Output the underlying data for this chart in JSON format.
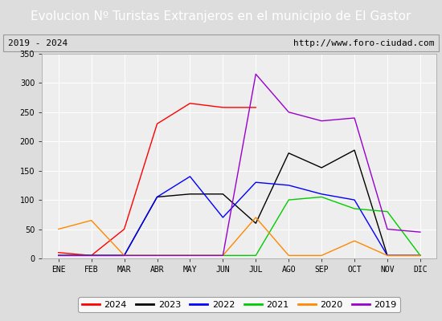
{
  "title": "Evolucion Nº Turistas Extranjeros en el municipio de El Gastor",
  "subtitle_left": "2019 - 2024",
  "subtitle_right": "http://www.foro-ciudad.com",
  "months": [
    "ENE",
    "FEB",
    "MAR",
    "ABR",
    "MAY",
    "JUN",
    "JUL",
    "AGO",
    "SEP",
    "OCT",
    "NOV",
    "DIC"
  ],
  "ylim": [
    0,
    350
  ],
  "yticks": [
    0,
    50,
    100,
    150,
    200,
    250,
    300,
    350
  ],
  "series": {
    "2024": {
      "color": "#ff0000",
      "values": [
        10,
        5,
        50,
        230,
        265,
        258,
        258,
        null,
        null,
        null,
        null,
        null
      ]
    },
    "2023": {
      "color": "#000000",
      "values": [
        5,
        5,
        5,
        105,
        110,
        110,
        60,
        180,
        155,
        185,
        5,
        5
      ]
    },
    "2022": {
      "color": "#0000ff",
      "values": [
        5,
        5,
        5,
        105,
        140,
        70,
        130,
        125,
        110,
        100,
        5,
        5
      ]
    },
    "2021": {
      "color": "#00cc00",
      "values": [
        5,
        5,
        5,
        5,
        5,
        5,
        5,
        100,
        105,
        85,
        80,
        5
      ]
    },
    "2020": {
      "color": "#ff8800",
      "values": [
        50,
        65,
        5,
        5,
        5,
        5,
        70,
        5,
        5,
        30,
        5,
        5
      ]
    },
    "2019": {
      "color": "#9900cc",
      "values": [
        5,
        5,
        5,
        5,
        5,
        5,
        315,
        250,
        235,
        240,
        50,
        45
      ]
    }
  },
  "title_bg_color": "#4a86c8",
  "title_color": "#ffffff",
  "plot_bg_color": "#eeeeee",
  "outer_bg_color": "#dddddd",
  "grid_color": "#ffffff",
  "border_color": "#aaaaaa",
  "subtitle_fontsize": 8,
  "title_fontsize": 11,
  "tick_fontsize": 7,
  "legend_fontsize": 8
}
